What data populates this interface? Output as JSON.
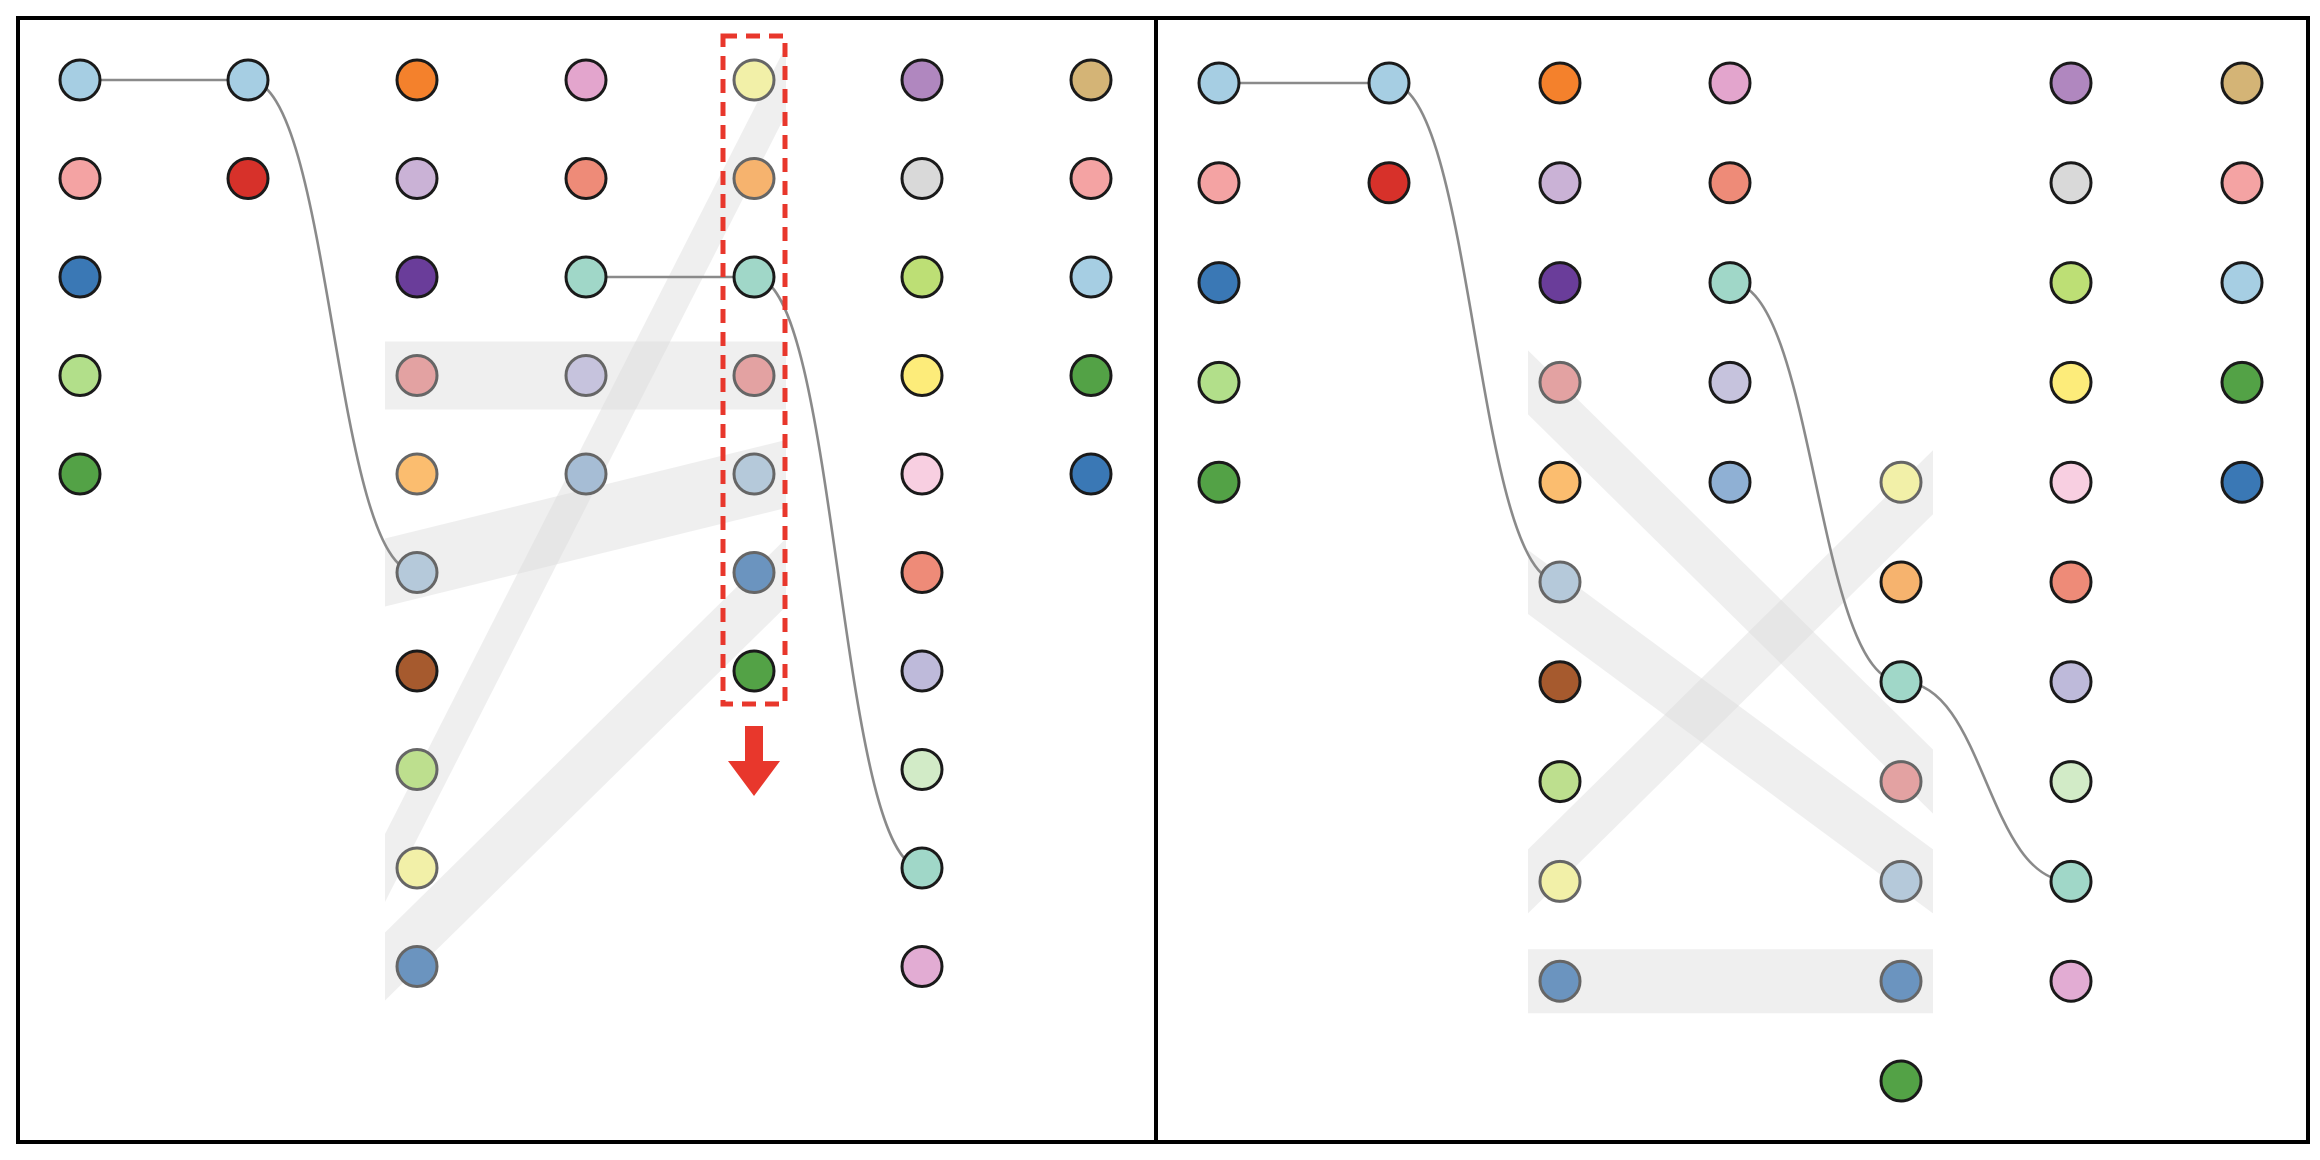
{
  "colors": {
    "frame": "#000000",
    "link": "#8a8a8a",
    "band": "#d9d9d9",
    "highlight": "#e8372c",
    "dot_stroke": "#1a1a1a",
    "dot_stroke_faded": "#666666"
  },
  "panels": [
    {
      "id": "before",
      "highlight_column": 4,
      "columns": [
        {
          "nodes": [
            {
              "id": "c0n0",
              "color": "#a6cee3"
            },
            {
              "id": "c0n1",
              "color": "#f4a3a3"
            },
            {
              "id": "c0n2",
              "color": "#3a78b5"
            },
            {
              "id": "c0n3",
              "color": "#b2df8a"
            },
            {
              "id": "c0n4",
              "color": "#53a246"
            }
          ]
        },
        {
          "nodes": [
            {
              "id": "c1n0",
              "color": "#a6cee3"
            },
            {
              "id": "c1n1",
              "color": "#d7312a"
            }
          ]
        },
        {
          "nodes": [
            {
              "id": "c2n0",
              "color": "#f4812c"
            },
            {
              "id": "c2n1",
              "color": "#cab2d6"
            },
            {
              "id": "c2n2",
              "color": "#6a3d9a"
            },
            {
              "id": "c2n3",
              "color": "#e3a2a2",
              "faded": true
            },
            {
              "id": "c2n4",
              "color": "#fbbd6f",
              "faded": true
            },
            {
              "id": "c2n5",
              "color": "#b5c9da",
              "faded": true
            },
            {
              "id": "c2n6",
              "color": "#a65a2e"
            },
            {
              "id": "c2n7",
              "color": "#bddf8e",
              "faded": true
            },
            {
              "id": "c2n8",
              "color": "#f2f0a8",
              "faded": true
            },
            {
              "id": "c2n9",
              "color": "#6b94bf",
              "faded": true
            }
          ]
        },
        {
          "nodes": [
            {
              "id": "c3n0",
              "color": "#e3a5cd"
            },
            {
              "id": "c3n1",
              "color": "#ee8b78"
            },
            {
              "id": "c3n2",
              "color": "#a0d7c8"
            },
            {
              "id": "c3n3",
              "color": "#c6c3dd",
              "faded": true
            },
            {
              "id": "c3n4",
              "color": "#a6bdd5",
              "faded": true
            }
          ]
        },
        {
          "nodes": [
            {
              "id": "c4n0",
              "color": "#f2f0a8",
              "faded": true
            },
            {
              "id": "c4n1",
              "color": "#f6b36e",
              "faded": true
            },
            {
              "id": "c4n2",
              "color": "#a0d7c8"
            },
            {
              "id": "c4n3",
              "color": "#e3a2a2",
              "faded": true
            },
            {
              "id": "c4n4",
              "color": "#b5c9da",
              "faded": true
            },
            {
              "id": "c4n5",
              "color": "#6b94bf",
              "faded": true
            },
            {
              "id": "c4n6",
              "color": "#53a246"
            }
          ]
        },
        {
          "nodes": [
            {
              "id": "c5n0",
              "color": "#b087bf"
            },
            {
              "id": "c5n1",
              "color": "#d9d9d9"
            },
            {
              "id": "c5n2",
              "color": "#bddf75"
            },
            {
              "id": "c5n3",
              "color": "#fdec7a"
            },
            {
              "id": "c5n4",
              "color": "#f8cfe1"
            },
            {
              "id": "c5n5",
              "color": "#ee8b78"
            },
            {
              "id": "c5n6",
              "color": "#bebada"
            },
            {
              "id": "c5n7",
              "color": "#d2ebc7"
            },
            {
              "id": "c5n8",
              "color": "#a0d7c8"
            },
            {
              "id": "c5n9",
              "color": "#e2acd3"
            }
          ]
        },
        {
          "nodes": [
            {
              "id": "c6n0",
              "color": "#d4b476"
            },
            {
              "id": "c6n1",
              "color": "#f4a3a3"
            },
            {
              "id": "c6n2",
              "color": "#a6cee3"
            },
            {
              "id": "c6n3",
              "color": "#53a246"
            },
            {
              "id": "c6n4",
              "color": "#3a78b5"
            }
          ]
        }
      ],
      "links": [
        {
          "from": "c0n0",
          "to": "c1n0"
        },
        {
          "from": "c1n0",
          "to": "c2n5"
        },
        {
          "from": "c3n2",
          "to": "c4n2"
        },
        {
          "from": "c4n2",
          "to": "c5n8"
        }
      ],
      "bands": [
        {
          "from": "c2n3",
          "to": "c4n3"
        },
        {
          "from": "c2n5",
          "to": "c4n4"
        },
        {
          "from": "c2n8",
          "to": "c4n0"
        },
        {
          "from": "c2n9",
          "to": "c4n5"
        }
      ]
    },
    {
      "id": "after",
      "columns": [
        {
          "nodes": [
            {
              "id": "c0n0",
              "color": "#a6cee3"
            },
            {
              "id": "c0n1",
              "color": "#f4a3a3"
            },
            {
              "id": "c0n2",
              "color": "#3a78b5"
            },
            {
              "id": "c0n3",
              "color": "#b2df8a"
            },
            {
              "id": "c0n4",
              "color": "#53a246"
            }
          ]
        },
        {
          "nodes": [
            {
              "id": "c1n0",
              "color": "#a6cee3"
            },
            {
              "id": "c1n1",
              "color": "#d7312a"
            }
          ]
        },
        {
          "nodes": [
            {
              "id": "c2n0",
              "color": "#f4812c"
            },
            {
              "id": "c2n1",
              "color": "#cab2d6"
            },
            {
              "id": "c2n2",
              "color": "#6a3d9a"
            },
            {
              "id": "c2n3",
              "color": "#e3a2a2",
              "faded": true
            },
            {
              "id": "c2n4",
              "color": "#fbbd6f"
            },
            {
              "id": "c2n5",
              "color": "#b5c9da",
              "faded": true
            },
            {
              "id": "c2n6",
              "color": "#a65a2e"
            },
            {
              "id": "c2n7",
              "color": "#bddf8e"
            },
            {
              "id": "c2n8",
              "color": "#f2f0a8",
              "faded": true
            },
            {
              "id": "c2n9",
              "color": "#6b94bf",
              "faded": true
            }
          ]
        },
        {
          "nodes": [
            {
              "id": "c3n0",
              "color": "#e3a5cd"
            },
            {
              "id": "c3n1",
              "color": "#ee8b78"
            },
            {
              "id": "c3n2",
              "color": "#a0d7c8"
            },
            {
              "id": "c3n3",
              "color": "#c6c3dd"
            },
            {
              "id": "c3n4",
              "color": "#8fb0d4"
            }
          ]
        },
        {
          "offset": 4,
          "nodes": [
            {
              "id": "c4n0",
              "color": "#f2f0a8",
              "faded": true
            },
            {
              "id": "c4n1",
              "color": "#f6b36e"
            },
            {
              "id": "c4n2",
              "color": "#a0d7c8"
            },
            {
              "id": "c4n3",
              "color": "#e3a2a2",
              "faded": true
            },
            {
              "id": "c4n4",
              "color": "#b5c9da",
              "faded": true
            },
            {
              "id": "c4n5",
              "color": "#6b94bf",
              "faded": true
            },
            {
              "id": "c4n6",
              "color": "#53a246"
            }
          ]
        },
        {
          "nodes": [
            {
              "id": "c5n0",
              "color": "#b087bf"
            },
            {
              "id": "c5n1",
              "color": "#d9d9d9"
            },
            {
              "id": "c5n2",
              "color": "#bddf75"
            },
            {
              "id": "c5n3",
              "color": "#fdec7a"
            },
            {
              "id": "c5n4",
              "color": "#f8cfe1"
            },
            {
              "id": "c5n5",
              "color": "#ee8b78"
            },
            {
              "id": "c5n6",
              "color": "#bebada"
            },
            {
              "id": "c5n7",
              "color": "#d2ebc7"
            },
            {
              "id": "c5n8",
              "color": "#a0d7c8"
            },
            {
              "id": "c5n9",
              "color": "#e2acd3"
            }
          ]
        },
        {
          "nodes": [
            {
              "id": "c6n0",
              "color": "#d4b476"
            },
            {
              "id": "c6n1",
              "color": "#f4a3a3"
            },
            {
              "id": "c6n2",
              "color": "#a6cee3"
            },
            {
              "id": "c6n3",
              "color": "#53a246"
            },
            {
              "id": "c6n4",
              "color": "#3a78b5"
            }
          ]
        }
      ],
      "links": [
        {
          "from": "c0n0",
          "to": "c1n0"
        },
        {
          "from": "c1n0",
          "to": "c2n5"
        },
        {
          "from": "c3n2",
          "to": "c4n2"
        },
        {
          "from": "c4n2",
          "to": "c5n8"
        }
      ],
      "bands": [
        {
          "from": "c2n3",
          "to": "c4n3"
        },
        {
          "from": "c2n5",
          "to": "c4n4"
        },
        {
          "from": "c2n8",
          "to": "c4n0"
        },
        {
          "from": "c2n9",
          "to": "c4n5"
        }
      ]
    }
  ]
}
